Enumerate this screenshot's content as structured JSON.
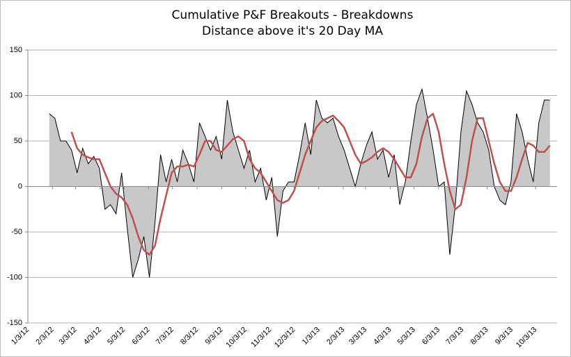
{
  "chart_data": {
    "type": "area",
    "title": "Cumulative P&F Breakouts - Breakdowns",
    "subtitle": "Distance above it's 20 Day MA",
    "x": [
      "1/30/12",
      "2/6/12",
      "2/13/12",
      "2/20/12",
      "2/27/12",
      "3/5/12",
      "3/12/12",
      "3/19/12",
      "3/26/12",
      "4/2/12",
      "4/9/12",
      "4/16/12",
      "4/23/12",
      "4/30/12",
      "5/7/12",
      "5/14/12",
      "5/21/12",
      "5/28/12",
      "6/4/12",
      "6/11/12",
      "6/18/12",
      "6/25/12",
      "7/2/12",
      "7/9/12",
      "7/16/12",
      "7/23/12",
      "7/30/12",
      "8/6/12",
      "8/13/12",
      "8/20/12",
      "8/27/12",
      "9/3/12",
      "9/10/12",
      "9/17/12",
      "9/24/12",
      "10/1/12",
      "10/8/12",
      "10/15/12",
      "10/22/12",
      "10/29/12",
      "11/5/12",
      "11/12/12",
      "11/19/12",
      "11/26/12",
      "12/3/12",
      "12/10/12",
      "12/17/12",
      "12/24/12",
      "12/31/12",
      "1/7/13",
      "1/14/13",
      "1/21/13",
      "1/28/13",
      "2/4/13",
      "2/11/13",
      "2/18/13",
      "2/25/13",
      "3/4/13",
      "3/11/13",
      "3/18/13",
      "3/25/13",
      "4/1/13",
      "4/8/13",
      "4/15/13",
      "4/22/13",
      "4/29/13",
      "5/6/13",
      "5/13/13",
      "5/20/13",
      "5/27/13",
      "6/3/13",
      "6/10/13",
      "6/17/13",
      "6/24/13",
      "7/1/13",
      "7/8/13",
      "7/15/13",
      "7/22/13",
      "7/29/13",
      "8/5/13",
      "8/12/13",
      "8/19/13",
      "8/26/13",
      "9/2/13",
      "9/9/13",
      "9/16/13",
      "9/23/13",
      "9/30/13",
      "10/7/13",
      "10/14/13",
      "10/21/13"
    ],
    "series": [
      {
        "kind": "area",
        "color": "#c8c8c8",
        "line_color": "#000000",
        "values": [
          80,
          75,
          50,
          50,
          40,
          15,
          42,
          25,
          33,
          20,
          -25,
          -20,
          -30,
          15,
          -45,
          -100,
          -80,
          -55,
          -100,
          -40,
          35,
          5,
          30,
          5,
          40,
          25,
          5,
          70,
          55,
          40,
          55,
          30,
          95,
          60,
          40,
          20,
          40,
          5,
          20,
          -15,
          10,
          -55,
          -5,
          5,
          5,
          35,
          70,
          35,
          95,
          75,
          70,
          75,
          55,
          40,
          20,
          0,
          25,
          45,
          60,
          30,
          40,
          10,
          35,
          -20,
          5,
          50,
          90,
          107,
          75,
          40,
          0,
          5,
          -75,
          -20,
          60,
          105,
          90,
          70,
          60,
          40,
          0,
          -15,
          -20,
          5,
          80,
          60,
          30,
          5,
          70,
          95,
          95
        ]
      },
      {
        "kind": "line",
        "color": "#c0504d",
        "values": [
          null,
          null,
          null,
          null,
          60,
          42,
          35,
          32,
          30,
          30,
          15,
          0,
          -8,
          -12,
          -20,
          -35,
          -55,
          -70,
          -75,
          -65,
          -35,
          -10,
          15,
          22,
          22,
          24,
          22,
          35,
          50,
          50,
          40,
          38,
          45,
          52,
          55,
          50,
          30,
          20,
          15,
          5,
          -5,
          -15,
          -18,
          -15,
          -5,
          15,
          35,
          50,
          65,
          72,
          75,
          78,
          72,
          65,
          50,
          35,
          25,
          28,
          32,
          38,
          42,
          38,
          30,
          20,
          10,
          10,
          25,
          55,
          75,
          80,
          60,
          25,
          -5,
          -25,
          -20,
          10,
          50,
          75,
          75,
          50,
          25,
          5,
          -5,
          -5,
          10,
          30,
          48,
          45,
          38,
          38,
          45
        ]
      }
    ],
    "xlim": [
      "1/3/12",
      "10/30/13"
    ],
    "xticks": [
      "1/3/12",
      "2/3/12",
      "3/3/12",
      "4/3/12",
      "5/3/12",
      "6/3/12",
      "7/3/12",
      "8/3/12",
      "9/3/12",
      "10/3/12",
      "11/3/12",
      "12/3/12",
      "1/3/13",
      "2/3/13",
      "3/3/13",
      "4/3/13",
      "5/3/13",
      "6/3/13",
      "7/3/13",
      "8/3/13",
      "9/3/13",
      "10/3/13"
    ],
    "ylim": [
      -150,
      150
    ],
    "yticks": [
      -150,
      -100,
      -50,
      0,
      50,
      100,
      150
    ],
    "grid": true
  }
}
